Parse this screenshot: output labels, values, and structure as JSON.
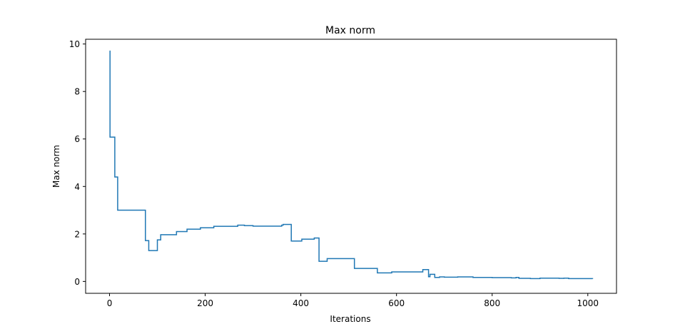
{
  "chart_data": {
    "type": "line",
    "title": "Max norm",
    "xlabel": "Iterations",
    "ylabel": "Max norm",
    "xlim": [
      -50,
      1060
    ],
    "ylim": [
      -0.5,
      10.2
    ],
    "xticks": [
      0,
      200,
      400,
      600,
      800,
      1000
    ],
    "yticks": [
      0,
      2,
      4,
      6,
      8,
      10
    ],
    "grid": false,
    "legend": "none",
    "line_color": "#1f77b4",
    "series": [
      {
        "style": "step",
        "points": [
          [
            0,
            9.7
          ],
          [
            1,
            6.08
          ],
          [
            11,
            4.4
          ],
          [
            17,
            3.0
          ],
          [
            75,
            1.72
          ],
          [
            82,
            1.3
          ],
          [
            100,
            1.75
          ],
          [
            107,
            1.97
          ],
          [
            140,
            2.1
          ],
          [
            162,
            2.2
          ],
          [
            190,
            2.26
          ],
          [
            218,
            2.32
          ],
          [
            268,
            2.37
          ],
          [
            282,
            2.35
          ],
          [
            300,
            2.33
          ],
          [
            360,
            2.37
          ],
          [
            363,
            2.4
          ],
          [
            380,
            1.7
          ],
          [
            402,
            1.78
          ],
          [
            428,
            1.83
          ],
          [
            438,
            0.85
          ],
          [
            455,
            0.96
          ],
          [
            512,
            0.55
          ],
          [
            560,
            0.36
          ],
          [
            590,
            0.4
          ],
          [
            655,
            0.5
          ],
          [
            667,
            0.2
          ],
          [
            670,
            0.3
          ],
          [
            680,
            0.17
          ],
          [
            690,
            0.19
          ],
          [
            700,
            0.18
          ],
          [
            728,
            0.19
          ],
          [
            760,
            0.17
          ],
          [
            800,
            0.16
          ],
          [
            840,
            0.15
          ],
          [
            850,
            0.17
          ],
          [
            856,
            0.13
          ],
          [
            880,
            0.12
          ],
          [
            900,
            0.14
          ],
          [
            940,
            0.13
          ],
          [
            950,
            0.14
          ],
          [
            960,
            0.12
          ],
          [
            1010,
            0.11
          ]
        ]
      }
    ]
  }
}
